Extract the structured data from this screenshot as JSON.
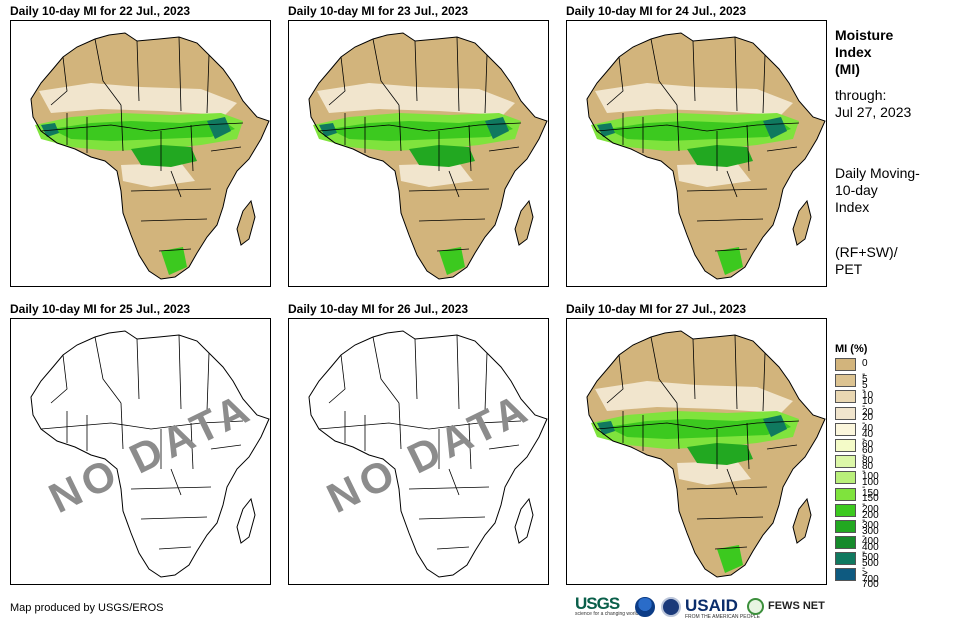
{
  "panels": [
    {
      "title": "Daily 10-day MI for 22 Jul., 2023",
      "has_data": true
    },
    {
      "title": "Daily 10-day MI for 23 Jul., 2023",
      "has_data": true
    },
    {
      "title": "Daily 10-day MI for 24 Jul., 2023",
      "has_data": true
    },
    {
      "title": "Daily 10-day MI for 25 Jul., 2023",
      "has_data": false,
      "overlay": "NO DATA"
    },
    {
      "title": "Daily 10-day MI for 26 Jul., 2023",
      "has_data": false,
      "overlay": "NO DATA"
    },
    {
      "title": "Daily 10-day MI for 27 Jul., 2023",
      "has_data": true
    }
  ],
  "sidebar": {
    "title_line1": "Moisture",
    "title_line2": "Index",
    "title_line3": "(MI)",
    "through_label": "through:",
    "through_date": "Jul 27, 2023",
    "desc_line1": "Daily Moving-",
    "desc_line2": "10-day",
    "desc_line3": "Index",
    "formula_line1": "(RF+SW)/",
    "formula_line2": "PET"
  },
  "legend": {
    "title": "MI (%)",
    "items": [
      {
        "label": "0 - 5",
        "color": "#d2b47c"
      },
      {
        "label": "5 - 10",
        "color": "#dcc391"
      },
      {
        "label": "10 - 20",
        "color": "#e9d7b2"
      },
      {
        "label": "20 - 40",
        "color": "#f1e5cd"
      },
      {
        "label": "40 - 60",
        "color": "#fbf6dc"
      },
      {
        "label": "60 - 80",
        "color": "#f4fbc8"
      },
      {
        "label": "80 - 100",
        "color": "#dcf7a8"
      },
      {
        "label": "100 - 150",
        "color": "#b9ef7a"
      },
      {
        "label": "150 - 200",
        "color": "#7fe33d"
      },
      {
        "label": "200 - 300",
        "color": "#3cc91f"
      },
      {
        "label": "300 - 400",
        "color": "#22a821"
      },
      {
        "label": "400 - 500",
        "color": "#168a2b"
      },
      {
        "label": "500 - 700",
        "color": "#10795f"
      },
      {
        "label": "> 700",
        "color": "#0e5a80"
      }
    ]
  },
  "footer": {
    "credit": "Map produced by USGS/EROS"
  },
  "logos": {
    "usgs": "USGS",
    "usgs_tagline": "science for a changing world",
    "usaid": "USAID",
    "usaid_tagline": "FROM THE AMERICAN PEOPLE",
    "fews": "FEWS NET"
  }
}
